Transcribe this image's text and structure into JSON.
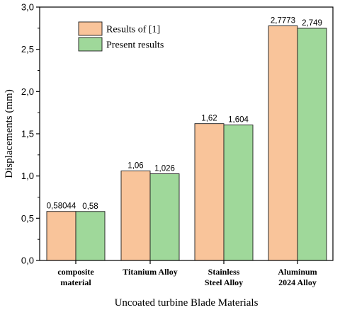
{
  "chart_data": {
    "type": "bar",
    "xlabel": "Uncoated turbine Blade Materials",
    "ylabel": "Displacements (mm)",
    "ylim": [
      0,
      3.0
    ],
    "yticks": [
      "0,0",
      "0,5",
      "1,0",
      "1,5",
      "2,0",
      "2,5",
      "3,0"
    ],
    "ytick_values": [
      0,
      0.5,
      1.0,
      1.5,
      2.0,
      2.5,
      3.0
    ],
    "grid": false,
    "legend_position": "top-left",
    "categories": [
      [
        "composite",
        "material"
      ],
      [
        "Titanium Alloy"
      ],
      [
        "Stainless",
        "Steel Alloy"
      ],
      [
        "Aluminum",
        "2024 Alloy"
      ]
    ],
    "series": [
      {
        "name": "Results of [1]",
        "color": "#f9c49a",
        "values": [
          0.58044,
          1.06,
          1.62,
          2.7773
        ],
        "labels": [
          "0,58044",
          "1,06",
          "1,62",
          "2,7773"
        ]
      },
      {
        "name": "Present results",
        "color": "#9fd89a",
        "values": [
          0.58,
          1.026,
          1.604,
          2.749
        ],
        "labels": [
          "0,58",
          "1,026",
          "1,604",
          "2,749"
        ]
      }
    ]
  }
}
